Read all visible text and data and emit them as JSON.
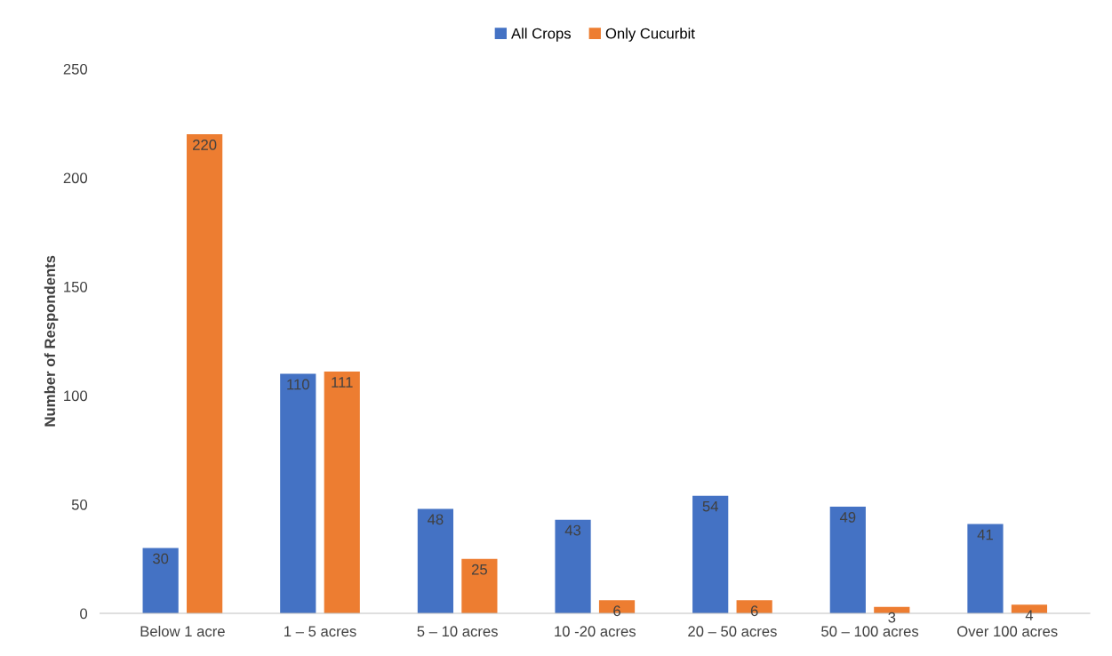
{
  "chart_data": {
    "type": "bar",
    "ylabel": "Number of Respondents",
    "categories": [
      "Below 1 acre",
      "1 – 5 acres",
      "5 – 10 acres",
      "10 -20 acres",
      "20 – 50 acres",
      "50 – 100 acres",
      "Over 100 acres"
    ],
    "series": [
      {
        "name": "All Crops",
        "color": "#4472c4",
        "values": [
          30,
          110,
          48,
          43,
          54,
          49,
          41
        ]
      },
      {
        "name": "Only Cucurbit",
        "color": "#ed7d31",
        "values": [
          220,
          111,
          25,
          6,
          6,
          3,
          4
        ]
      }
    ],
    "ylim": [
      0,
      250
    ],
    "yticks": [
      0,
      50,
      100,
      150,
      200,
      250
    ],
    "grid": false,
    "legend": "top",
    "data_labels": true
  }
}
